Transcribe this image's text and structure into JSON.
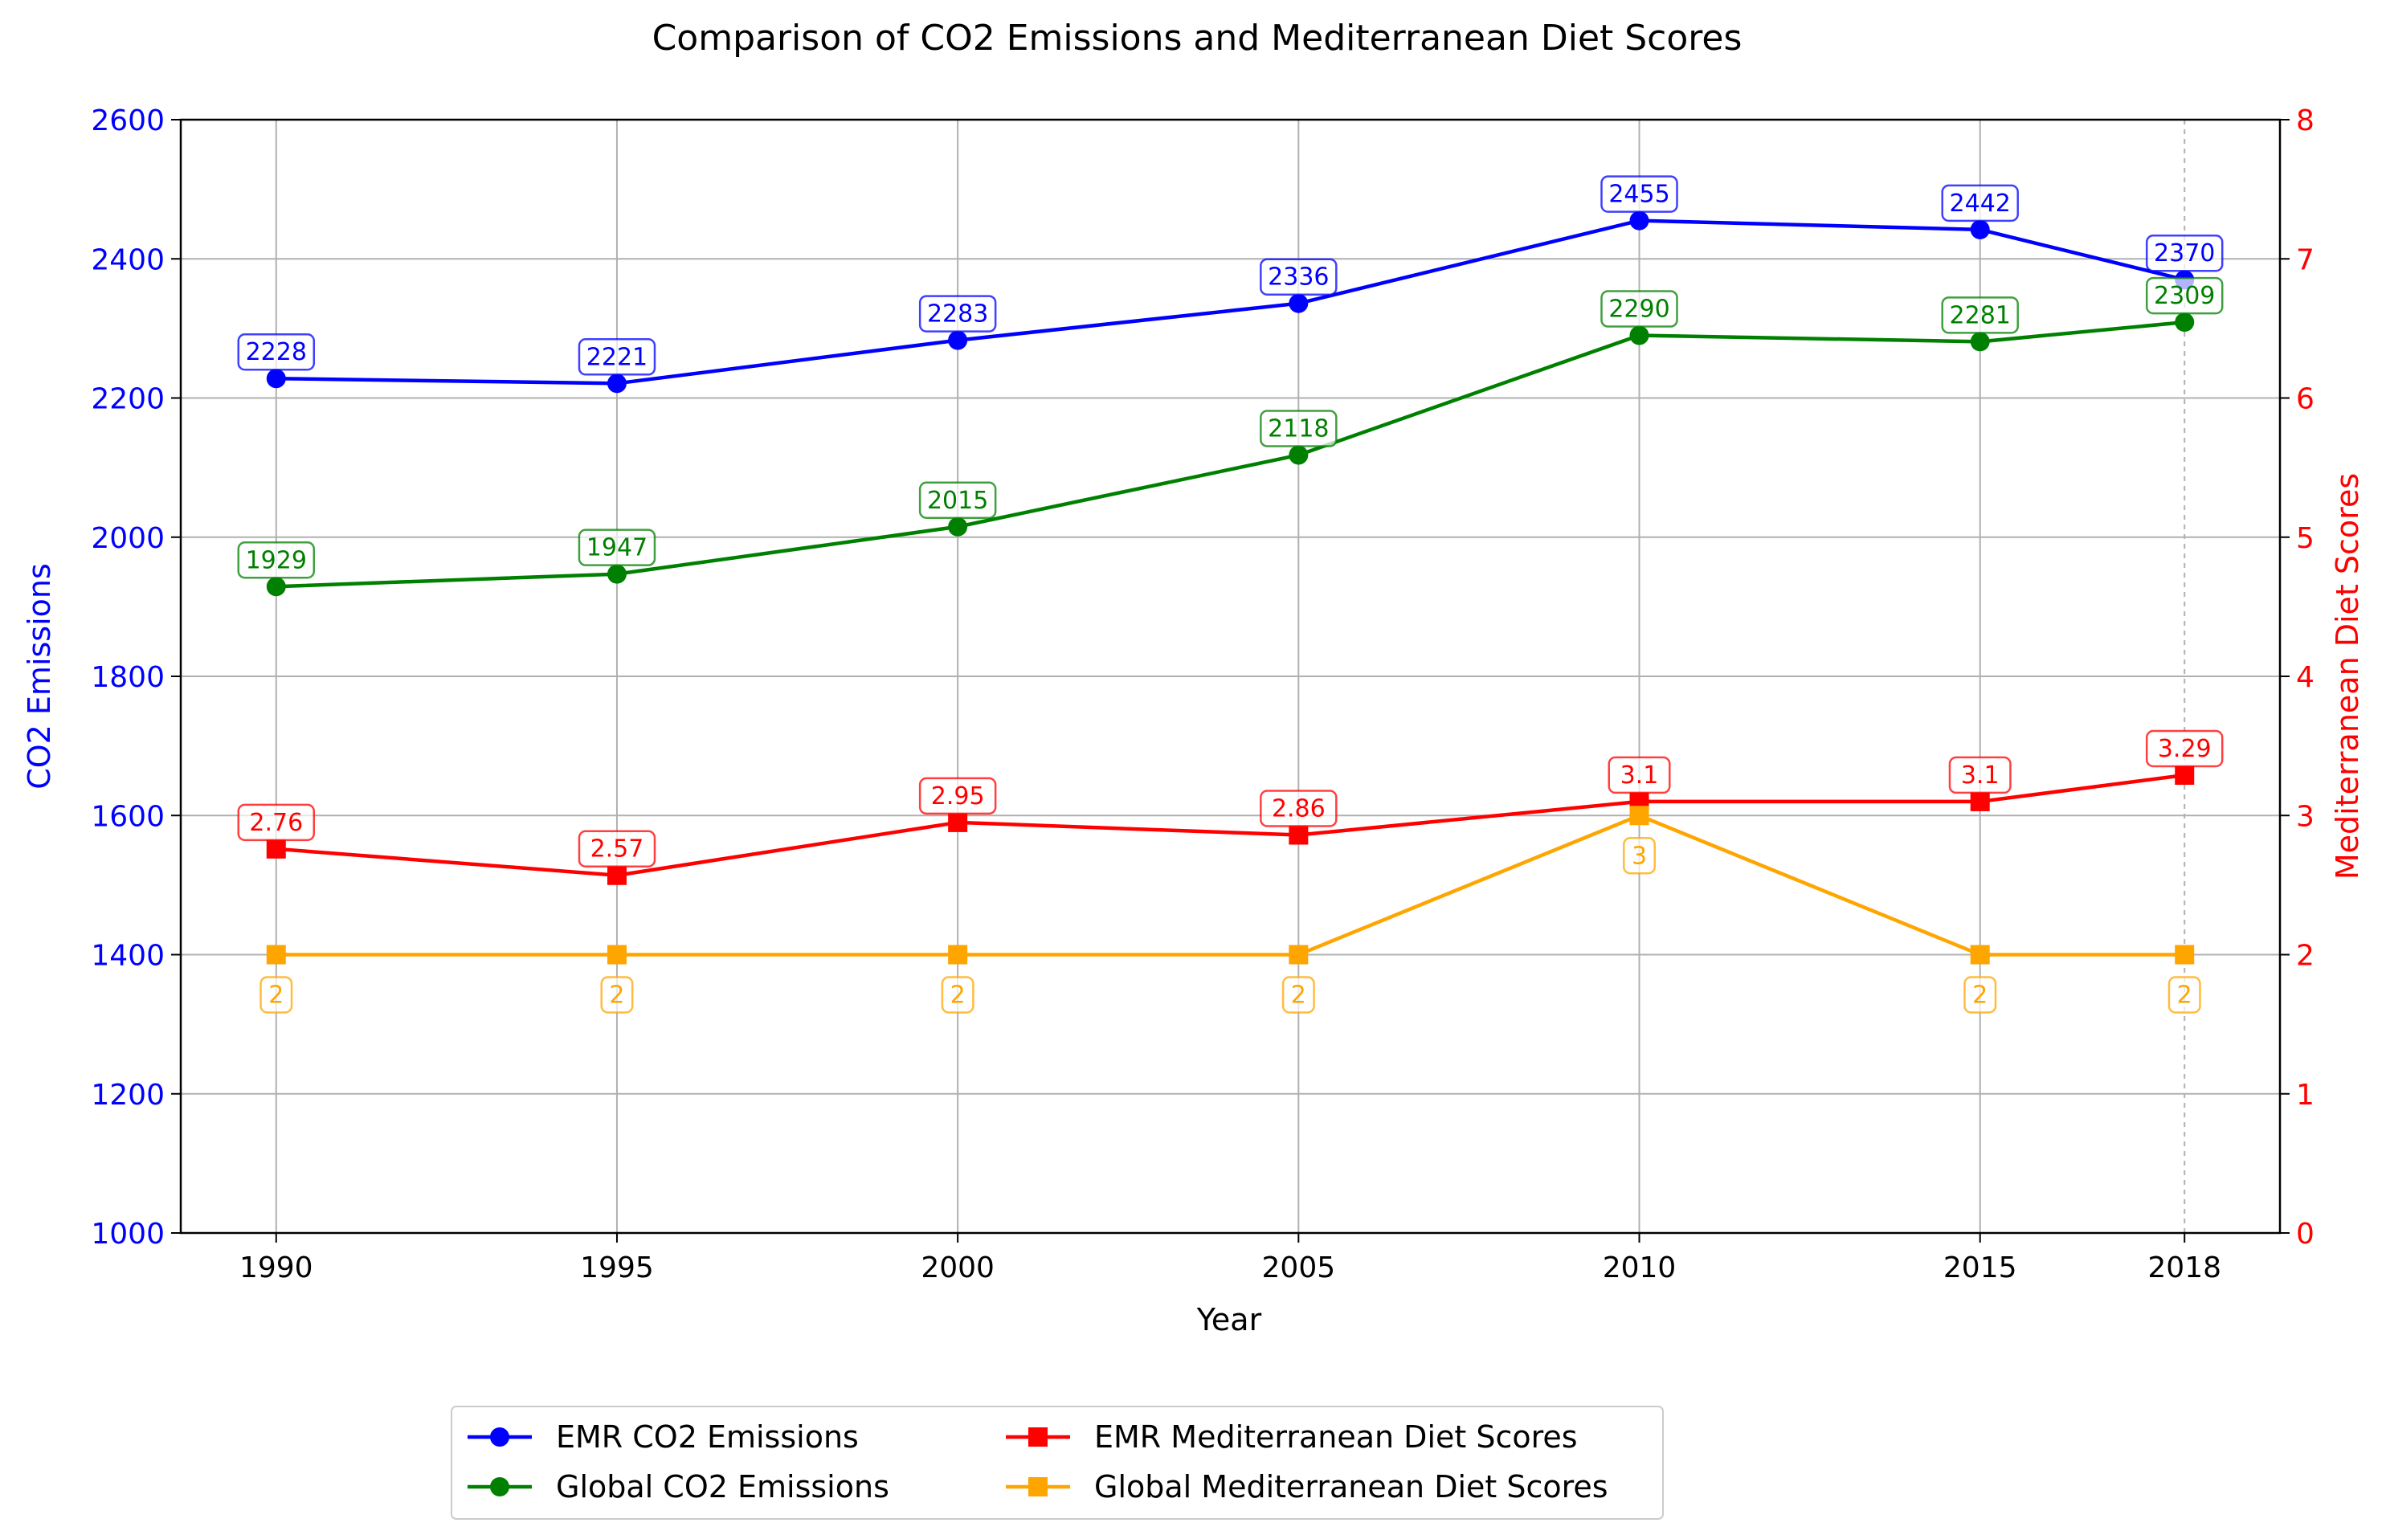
{
  "chart_data": {
    "type": "line",
    "title": "Comparison of CO2 Emissions and Mediterranean Diet Scores",
    "xlabel": "Year",
    "ylabel_left": "CO2 Emissions",
    "ylabel_right": "Mediterranean Diet Scores",
    "x": [
      1990,
      1995,
      2000,
      2005,
      2010,
      2015,
      2018
    ],
    "x_tick_labels": [
      "1990",
      "1995",
      "2000",
      "2005",
      "2010",
      "2015",
      "2018"
    ],
    "ylim_left": [
      1000,
      2600
    ],
    "yticks_left": [
      "1000",
      "1200",
      "1400",
      "1600",
      "1800",
      "2000",
      "2200",
      "2400",
      "2600"
    ],
    "ylim_right": [
      0,
      8
    ],
    "yticks_right": [
      "0",
      "1",
      "2",
      "3",
      "4",
      "5",
      "6",
      "7",
      "8"
    ],
    "grid": true,
    "legend_position": "bottom-center",
    "series": [
      {
        "name": "EMR CO2 Emissions",
        "axis": "left",
        "marker": "circle",
        "color": "#0000ff",
        "values": [
          2228,
          2221,
          2283,
          2336,
          2455,
          2442,
          2370
        ],
        "labels": [
          "2228",
          "2221",
          "2283",
          "2336",
          "2455",
          "2442",
          "2370"
        ]
      },
      {
        "name": "Global CO2 Emissions",
        "axis": "left",
        "marker": "circle",
        "color": "#008000",
        "values": [
          1929,
          1947,
          2015,
          2118,
          2290,
          2281,
          2309
        ],
        "labels": [
          "1929",
          "1947",
          "2015",
          "2118",
          "2290",
          "2281",
          "2309"
        ]
      },
      {
        "name": "EMR Mediterranean Diet Scores",
        "axis": "right",
        "marker": "square",
        "color": "#ff0000",
        "values": [
          2.76,
          2.57,
          2.95,
          2.86,
          3.1,
          3.1,
          3.29
        ],
        "labels": [
          "2.76",
          "2.57",
          "2.95",
          "2.86",
          "3.1",
          "3.1",
          "3.29"
        ]
      },
      {
        "name": "Global Mediterranean Diet Scores",
        "axis": "right",
        "marker": "square",
        "color": "#ffa500",
        "values": [
          2,
          2,
          2,
          2,
          3,
          2,
          2
        ],
        "labels": [
          "2",
          "2",
          "2",
          "2",
          "3",
          "2",
          "2"
        ]
      }
    ],
    "left_axis_color": "#0000ff",
    "right_axis_color": "#ff0000"
  }
}
